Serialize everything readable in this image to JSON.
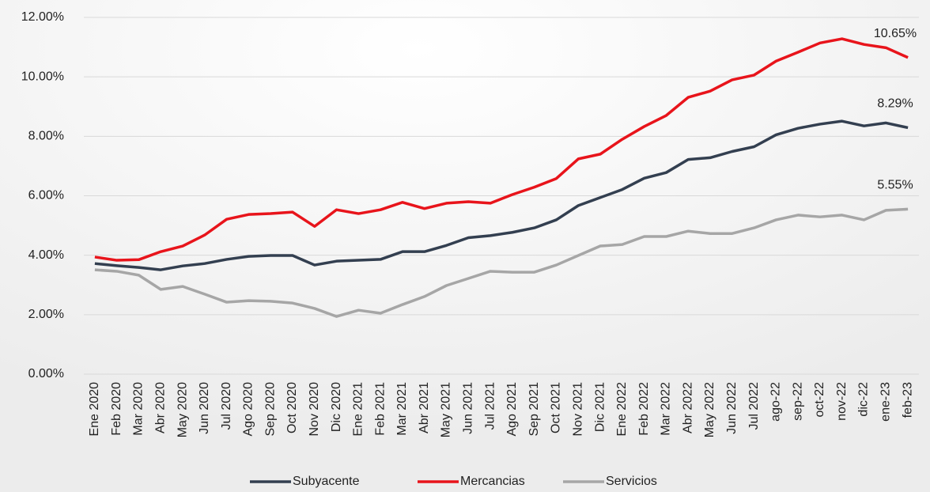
{
  "chart_data": {
    "type": "line",
    "categories": [
      "Ene 2020",
      "Feb 2020",
      "Mar 2020",
      "Abr 2020",
      "May 2020",
      "Jun 2020",
      "Jul 2020",
      "Ago 2020",
      "Sep 2020",
      "Oct 2020",
      "Nov 2020",
      "Dic 2020",
      "Ene 2021",
      "Feb 2021",
      "Mar 2021",
      "Abr 2021",
      "May 2021",
      "Jun 2021",
      "Jul 2021",
      "Ago 2021",
      "Sep 2021",
      "Oct 2021",
      "Nov 2021",
      "Dic 2021",
      "Ene 2022",
      "Feb 2022",
      "Mar 2022",
      "Abr 2022",
      "May 2022",
      "Jun 2022",
      "Jul 2022",
      "ago-22",
      "sep-22",
      "oct-22",
      "nov-22",
      "dic-22",
      "ene-23",
      "feb-23"
    ],
    "series": [
      {
        "name": "Subyacente",
        "color": "#333f50",
        "values": [
          3.72,
          3.65,
          3.59,
          3.51,
          3.64,
          3.72,
          3.86,
          3.96,
          3.99,
          3.99,
          3.67,
          3.8,
          3.83,
          3.86,
          4.12,
          4.12,
          4.33,
          4.59,
          4.66,
          4.77,
          4.92,
          5.19,
          5.67,
          5.94,
          6.21,
          6.59,
          6.78,
          7.22,
          7.28,
          7.49,
          7.65,
          8.05,
          8.27,
          8.41,
          8.51,
          8.35,
          8.45,
          8.29
        ],
        "value_labels": [
          null,
          null,
          null,
          null,
          null,
          null,
          null,
          null,
          null,
          null,
          null,
          null,
          null,
          null,
          null,
          null,
          null,
          null,
          null,
          null,
          null,
          null,
          null,
          null,
          null,
          null,
          null,
          null,
          null,
          null,
          null,
          null,
          null,
          null,
          null,
          null,
          null,
          "8.29%"
        ]
      },
      {
        "name": "Mercancias",
        "color": "#e8141b",
        "values": [
          3.94,
          3.83,
          3.85,
          4.12,
          4.31,
          4.68,
          5.21,
          5.37,
          5.4,
          5.45,
          4.97,
          5.53,
          5.4,
          5.53,
          5.78,
          5.57,
          5.75,
          5.8,
          5.75,
          6.04,
          6.29,
          6.58,
          7.24,
          7.4,
          7.9,
          8.33,
          8.7,
          9.31,
          9.52,
          9.9,
          10.06,
          10.53,
          10.83,
          11.14,
          11.28,
          11.09,
          10.98,
          10.65
        ],
        "value_labels": [
          null,
          null,
          null,
          null,
          null,
          null,
          null,
          null,
          null,
          null,
          null,
          null,
          null,
          null,
          null,
          null,
          null,
          null,
          null,
          null,
          null,
          null,
          null,
          null,
          null,
          null,
          null,
          null,
          null,
          null,
          null,
          null,
          null,
          null,
          null,
          null,
          null,
          "10.65%"
        ]
      },
      {
        "name": "Servicios",
        "color": "#a6a6a6",
        "values": [
          3.51,
          3.46,
          3.33,
          2.85,
          2.95,
          2.69,
          2.42,
          2.47,
          2.45,
          2.39,
          2.21,
          1.94,
          2.15,
          2.05,
          2.34,
          2.61,
          2.98,
          3.22,
          3.46,
          3.43,
          3.43,
          3.67,
          3.99,
          4.31,
          4.36,
          4.63,
          4.63,
          4.81,
          4.73,
          4.73,
          4.92,
          5.19,
          5.35,
          5.29,
          5.35,
          5.19,
          5.51,
          5.55
        ],
        "value_labels": [
          null,
          null,
          null,
          null,
          null,
          null,
          null,
          null,
          null,
          null,
          null,
          null,
          null,
          null,
          null,
          null,
          null,
          null,
          null,
          null,
          null,
          null,
          null,
          null,
          null,
          null,
          null,
          null,
          null,
          null,
          null,
          null,
          null,
          null,
          null,
          null,
          null,
          "5.55%"
        ]
      }
    ],
    "ylim": [
      0,
      12
    ],
    "yticks": [
      {
        "value": 0,
        "label": "0.00%"
      },
      {
        "value": 2,
        "label": "2.00%"
      },
      {
        "value": 4,
        "label": "4.00%"
      },
      {
        "value": 6,
        "label": "6.00%"
      },
      {
        "value": 8,
        "label": "8.00%"
      },
      {
        "value": 10,
        "label": "10.00%"
      },
      {
        "value": 12,
        "label": "12.00%"
      }
    ],
    "grid": true,
    "legend": "bottom"
  }
}
